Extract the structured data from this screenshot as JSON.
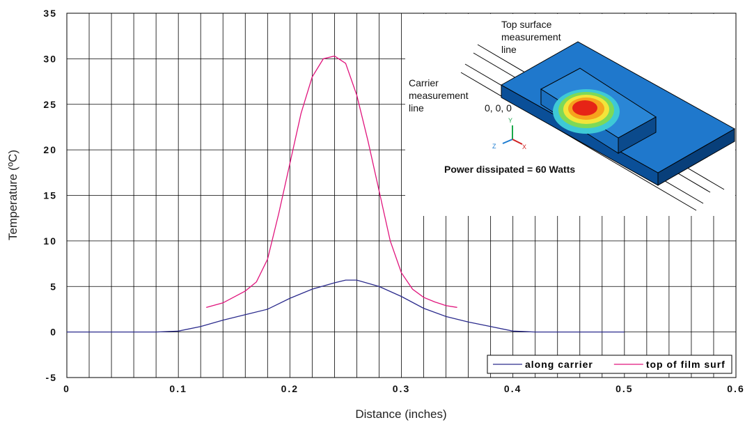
{
  "chart_data": {
    "type": "line",
    "x_label": "Distance (inches)",
    "y_label": "Temperature (ºC)",
    "xlim": [
      0,
      0.6
    ],
    "xticks": [
      0,
      0.1,
      0.2,
      0.3,
      0.4,
      0.5,
      0.6
    ],
    "ylim": [
      -5,
      35
    ],
    "yticks": [
      -5,
      0,
      5,
      10,
      15,
      20,
      25,
      30,
      35
    ],
    "grid": true,
    "legend": "lower right",
    "series": [
      {
        "name": "along carrier",
        "color": "#2a2a8c",
        "x": [
          0,
          0.02,
          0.04,
          0.06,
          0.08,
          0.1,
          0.12,
          0.14,
          0.16,
          0.18,
          0.2,
          0.22,
          0.24,
          0.25,
          0.26,
          0.28,
          0.3,
          0.32,
          0.34,
          0.36,
          0.38,
          0.4,
          0.42,
          0.44,
          0.46,
          0.48,
          0.5
        ],
        "values": [
          0,
          0,
          0,
          0,
          0,
          0.1,
          0.6,
          1.3,
          1.9,
          2.5,
          3.7,
          4.7,
          5.4,
          5.7,
          5.7,
          5.0,
          3.9,
          2.6,
          1.7,
          1.1,
          0.6,
          0.1,
          0,
          0,
          0,
          0,
          0
        ]
      },
      {
        "name": "top of film surf",
        "color": "#e0147c",
        "x": [
          0.125,
          0.14,
          0.16,
          0.17,
          0.18,
          0.19,
          0.2,
          0.21,
          0.22,
          0.23,
          0.24,
          0.25,
          0.26,
          0.27,
          0.28,
          0.29,
          0.3,
          0.31,
          0.32,
          0.33,
          0.34,
          0.35
        ],
        "values": [
          2.7,
          3.2,
          4.5,
          5.5,
          8,
          13,
          18.5,
          24,
          28,
          30,
          30.3,
          29.5,
          26,
          21,
          15.5,
          10,
          6.5,
          4.7,
          3.8,
          3.3,
          2.9,
          2.7
        ]
      }
    ],
    "inset": {
      "top_surface_label": [
        "Top surface",
        "measurement",
        "line"
      ],
      "carrier_label": [
        "Carrier",
        "measurement",
        "line"
      ],
      "origin_label": "0, 0, 0",
      "power_label": "Power dissipated = 60 Watts",
      "axes": [
        "Y",
        "Z",
        "X"
      ]
    }
  }
}
